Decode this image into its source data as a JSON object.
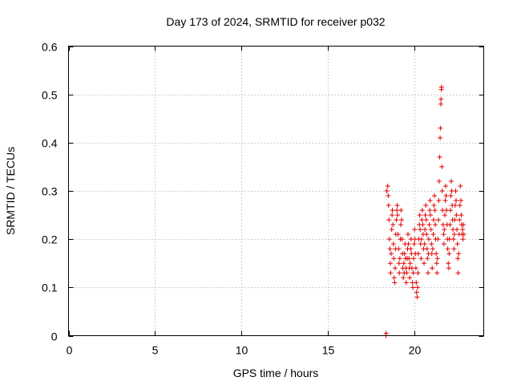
{
  "chart_data": {
    "type": "scatter",
    "title": "Day 173 of 2024, SRMTID for receiver p032",
    "xlabel": "GPS time / hours",
    "ylabel": "SRMTID / TECUs",
    "xlim": [
      0,
      24
    ],
    "ylim": [
      0,
      0.6
    ],
    "xticks": [
      0,
      5,
      10,
      15,
      20
    ],
    "xtick_labels": [
      "0",
      "5",
      "10",
      "15",
      "20"
    ],
    "yticks": [
      0,
      0.1,
      0.2,
      0.3,
      0.4,
      0.5,
      0.6
    ],
    "ytick_labels": [
      "0",
      "0.1",
      "0.2",
      "0.3",
      "0.4",
      "0.5",
      "0.6"
    ],
    "grid": true,
    "marker": "+",
    "color": "#e00000",
    "series": [
      {
        "name": "p032",
        "points": [
          [
            18.35,
            0.0
          ],
          [
            18.36,
            0.005
          ],
          [
            18.4,
            0.3
          ],
          [
            18.45,
            0.31
          ],
          [
            18.48,
            0.29
          ],
          [
            18.5,
            0.27
          ],
          [
            18.52,
            0.24
          ],
          [
            18.55,
            0.2
          ],
          [
            18.58,
            0.18
          ],
          [
            18.6,
            0.15
          ],
          [
            18.62,
            0.13
          ],
          [
            18.65,
            0.17
          ],
          [
            18.68,
            0.22
          ],
          [
            18.7,
            0.25
          ],
          [
            18.72,
            0.26
          ],
          [
            18.75,
            0.23
          ],
          [
            18.78,
            0.19
          ],
          [
            18.8,
            0.16
          ],
          [
            18.82,
            0.12
          ],
          [
            18.85,
            0.11
          ],
          [
            18.88,
            0.14
          ],
          [
            18.9,
            0.18
          ],
          [
            18.92,
            0.21
          ],
          [
            18.95,
            0.24
          ],
          [
            18.98,
            0.26
          ],
          [
            19.0,
            0.27
          ],
          [
            19.02,
            0.25
          ],
          [
            19.05,
            0.21
          ],
          [
            19.08,
            0.18
          ],
          [
            19.1,
            0.15
          ],
          [
            19.12,
            0.13
          ],
          [
            19.15,
            0.16
          ],
          [
            19.18,
            0.2
          ],
          [
            19.2,
            0.23
          ],
          [
            19.22,
            0.26
          ],
          [
            19.25,
            0.24
          ],
          [
            19.28,
            0.2
          ],
          [
            19.3,
            0.17
          ],
          [
            19.32,
            0.14
          ],
          [
            19.35,
            0.12
          ],
          [
            19.38,
            0.15
          ],
          [
            19.4,
            0.13
          ],
          [
            19.42,
            0.17
          ],
          [
            19.45,
            0.19
          ],
          [
            19.48,
            0.16
          ],
          [
            19.5,
            0.14
          ],
          [
            19.52,
            0.11
          ],
          [
            19.55,
            0.13
          ],
          [
            19.58,
            0.16
          ],
          [
            19.6,
            0.18
          ],
          [
            19.62,
            0.21
          ],
          [
            19.65,
            0.19
          ],
          [
            19.68,
            0.16
          ],
          [
            19.7,
            0.14
          ],
          [
            19.72,
            0.12
          ],
          [
            19.75,
            0.15
          ],
          [
            19.78,
            0.18
          ],
          [
            19.8,
            0.2
          ],
          [
            19.82,
            0.17
          ],
          [
            19.85,
            0.14
          ],
          [
            19.88,
            0.11
          ],
          [
            19.9,
            0.1
          ],
          [
            19.92,
            0.13
          ],
          [
            19.95,
            0.16
          ],
          [
            19.98,
            0.19
          ],
          [
            20.0,
            0.22
          ],
          [
            20.02,
            0.2
          ],
          [
            20.05,
            0.17
          ],
          [
            20.08,
            0.14
          ],
          [
            20.1,
            0.11
          ],
          [
            20.12,
            0.09
          ],
          [
            20.15,
            0.08
          ],
          [
            20.18,
            0.1
          ],
          [
            20.2,
            0.13
          ],
          [
            20.22,
            0.17
          ],
          [
            20.25,
            0.2
          ],
          [
            20.28,
            0.23
          ],
          [
            20.3,
            0.25
          ],
          [
            20.32,
            0.22
          ],
          [
            20.35,
            0.19
          ],
          [
            20.38,
            0.16
          ],
          [
            20.4,
            0.2
          ],
          [
            20.42,
            0.24
          ],
          [
            20.45,
            0.26
          ],
          [
            20.48,
            0.23
          ],
          [
            20.5,
            0.21
          ],
          [
            20.52,
            0.18
          ],
          [
            20.55,
            0.15
          ],
          [
            20.58,
            0.19
          ],
          [
            20.6,
            0.22
          ],
          [
            20.62,
            0.25
          ],
          [
            20.65,
            0.27
          ],
          [
            20.68,
            0.24
          ],
          [
            20.7,
            0.21
          ],
          [
            20.72,
            0.18
          ],
          [
            20.75,
            0.16
          ],
          [
            20.78,
            0.13
          ],
          [
            20.8,
            0.17
          ],
          [
            20.82,
            0.2
          ],
          [
            20.85,
            0.23
          ],
          [
            20.88,
            0.26
          ],
          [
            20.9,
            0.28
          ],
          [
            20.92,
            0.25
          ],
          [
            20.95,
            0.22
          ],
          [
            20.98,
            0.19
          ],
          [
            21.0,
            0.17
          ],
          [
            21.02,
            0.14
          ],
          [
            21.05,
            0.18
          ],
          [
            21.08,
            0.21
          ],
          [
            21.1,
            0.24
          ],
          [
            21.12,
            0.27
          ],
          [
            21.15,
            0.29
          ],
          [
            21.18,
            0.26
          ],
          [
            21.2,
            0.23
          ],
          [
            21.22,
            0.2
          ],
          [
            21.25,
            0.17
          ],
          [
            21.28,
            0.15
          ],
          [
            21.3,
            0.13
          ],
          [
            21.32,
            0.16
          ],
          [
            21.35,
            0.2
          ],
          [
            21.38,
            0.24
          ],
          [
            21.4,
            0.28
          ],
          [
            21.42,
            0.32
          ],
          [
            21.45,
            0.37
          ],
          [
            21.48,
            0.41
          ],
          [
            21.5,
            0.43
          ],
          [
            21.52,
            0.48
          ],
          [
            21.53,
            0.49
          ],
          [
            21.55,
            0.51
          ],
          [
            21.56,
            0.515
          ],
          [
            21.58,
            0.35
          ],
          [
            21.6,
            0.3
          ],
          [
            21.62,
            0.26
          ],
          [
            21.65,
            0.23
          ],
          [
            21.68,
            0.21
          ],
          [
            21.7,
            0.19
          ],
          [
            21.72,
            0.22
          ],
          [
            21.75,
            0.25
          ],
          [
            21.78,
            0.28
          ],
          [
            21.8,
            0.31
          ],
          [
            21.82,
            0.29
          ],
          [
            21.85,
            0.26
          ],
          [
            21.88,
            0.23
          ],
          [
            21.9,
            0.2
          ],
          [
            21.92,
            0.18
          ],
          [
            21.95,
            0.15
          ],
          [
            21.98,
            0.14
          ],
          [
            22.0,
            0.17
          ],
          [
            22.02,
            0.2
          ],
          [
            22.05,
            0.23
          ],
          [
            22.08,
            0.26
          ],
          [
            22.1,
            0.29
          ],
          [
            22.12,
            0.32
          ],
          [
            22.15,
            0.3
          ],
          [
            22.18,
            0.27
          ],
          [
            22.2,
            0.24
          ],
          [
            22.22,
            0.22
          ],
          [
            22.25,
            0.2
          ],
          [
            22.28,
            0.18
          ],
          [
            22.3,
            0.21
          ],
          [
            22.32,
            0.24
          ],
          [
            22.35,
            0.27
          ],
          [
            22.38,
            0.3
          ],
          [
            22.4,
            0.28
          ],
          [
            22.42,
            0.25
          ],
          [
            22.45,
            0.22
          ],
          [
            22.48,
            0.19
          ],
          [
            22.5,
            0.16
          ],
          [
            22.52,
            0.13
          ],
          [
            22.55,
            0.17
          ],
          [
            22.58,
            0.21
          ],
          [
            22.6,
            0.24
          ],
          [
            22.62,
            0.27
          ],
          [
            22.65,
            0.31
          ],
          [
            22.68,
            0.28
          ],
          [
            22.7,
            0.25
          ],
          [
            22.72,
            0.23
          ],
          [
            22.75,
            0.21
          ],
          [
            22.78,
            0.22
          ],
          [
            22.8,
            0.2
          ],
          [
            22.82,
            0.23
          ],
          [
            22.85,
            0.21
          ]
        ]
      }
    ]
  }
}
